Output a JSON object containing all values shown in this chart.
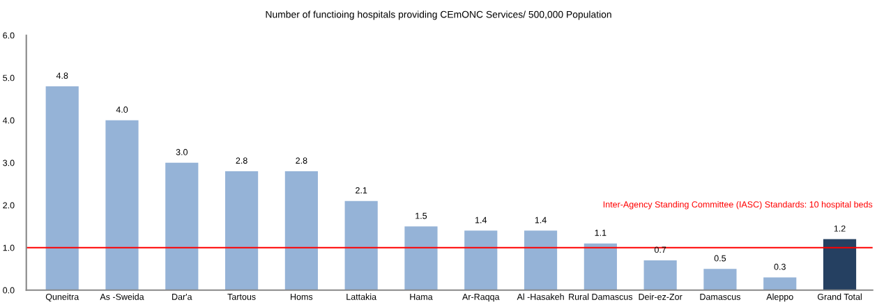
{
  "chart_data": {
    "type": "bar",
    "title": "Number of functioing hospitals providing CEmONC Services/ 500,000 Population",
    "categories": [
      "Quneitra",
      "As -Sweida",
      "Dar'a",
      "Tartous",
      "Homs",
      "Lattakia",
      "Hama",
      "Ar-Raqqa",
      "Al -Hasakeh",
      "Rural Damascus",
      "Deir-ez-Zor",
      "Damascus",
      "Aleppo",
      "Grand Total"
    ],
    "values": [
      4.8,
      4.0,
      3.0,
      2.8,
      2.8,
      2.1,
      1.5,
      1.4,
      1.4,
      1.1,
      0.7,
      0.5,
      0.3,
      1.2
    ],
    "colors": [
      "#95b3d7",
      "#95b3d7",
      "#95b3d7",
      "#95b3d7",
      "#95b3d7",
      "#95b3d7",
      "#95b3d7",
      "#95b3d7",
      "#95b3d7",
      "#95b3d7",
      "#95b3d7",
      "#95b3d7",
      "#95b3d7",
      "#254061"
    ],
    "ylim": [
      0,
      6
    ],
    "yticks": [
      {
        "value": 0,
        "label": "0.0"
      },
      {
        "value": 1,
        "label": "1.0"
      },
      {
        "value": 2,
        "label": "2.0"
      },
      {
        "value": 3,
        "label": "3.0"
      },
      {
        "value": 4,
        "label": "4.0"
      },
      {
        "value": 5,
        "label": "5.0"
      },
      {
        "value": 6,
        "label": "6.0"
      }
    ],
    "value_labels": [
      "4.8",
      "4.0",
      "3.0",
      "2.8",
      "2.8",
      "2.1",
      "1.5",
      "1.4",
      "1.4",
      "1.1",
      "0.7",
      "0.5",
      "0.3",
      "1.2"
    ],
    "annotations": [
      "Inter-Agency Standing Committee (IASC) Standards: 10 hospital beds"
    ],
    "ref_lines": [
      {
        "axis": "y",
        "value": 1,
        "color": "#ff0000"
      }
    ]
  }
}
